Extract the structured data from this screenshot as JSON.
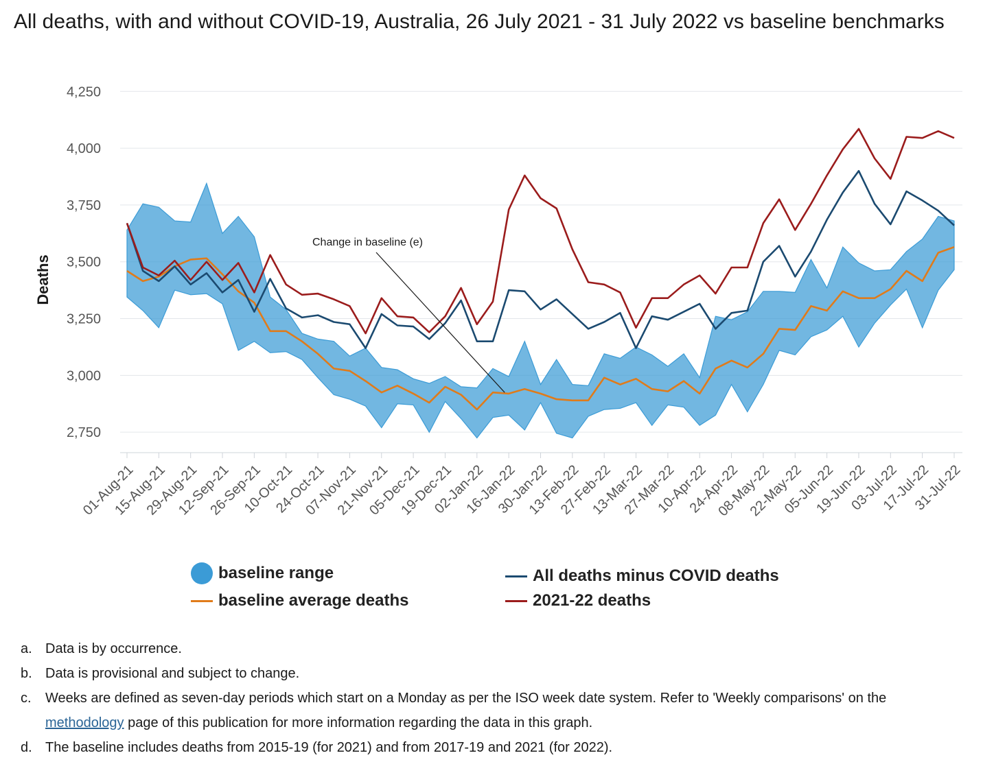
{
  "chart_data": {
    "type": "line",
    "title": "All deaths, with and without COVID-19, Australia, 26 July 2021 - 31 July 2022 vs baseline benchmarks",
    "ylabel": "Deaths",
    "xlabel": "",
    "ylim": [
      2660,
      4290
    ],
    "yticks": [
      2750,
      3000,
      3250,
      3500,
      3750,
      4000,
      4250
    ],
    "grid": true,
    "legend_position": "bottom",
    "x": [
      "01-Aug-21",
      "08-Aug-21",
      "15-Aug-21",
      "22-Aug-21",
      "29-Aug-21",
      "05-Sep-21",
      "12-Sep-21",
      "19-Sep-21",
      "26-Sep-21",
      "03-Oct-21",
      "10-Oct-21",
      "17-Oct-21",
      "24-Oct-21",
      "31-Oct-21",
      "07-Nov-21",
      "14-Nov-21",
      "21-Nov-21",
      "28-Nov-21",
      "05-Dec-21",
      "12-Dec-21",
      "19-Dec-21",
      "26-Dec-21",
      "02-Jan-22",
      "09-Jan-22",
      "16-Jan-22",
      "23-Jan-22",
      "30-Jan-22",
      "06-Feb-22",
      "13-Feb-22",
      "20-Feb-22",
      "27-Feb-22",
      "06-Mar-22",
      "13-Mar-22",
      "20-Mar-22",
      "27-Mar-22",
      "03-Apr-22",
      "10-Apr-22",
      "17-Apr-22",
      "24-Apr-22",
      "01-May-22",
      "08-May-22",
      "15-May-22",
      "22-May-22",
      "29-May-22",
      "05-Jun-22",
      "12-Jun-22",
      "19-Jun-22",
      "26-Jun-22",
      "03-Jul-22",
      "10-Jul-22",
      "17-Jul-22",
      "24-Jul-22",
      "31-Jul-22"
    ],
    "xtick_labels": [
      "01-Aug-21",
      "15-Aug-21",
      "29-Aug-21",
      "12-Sep-21",
      "26-Sep-21",
      "10-Oct-21",
      "24-Oct-21",
      "07-Nov-21",
      "21-Nov-21",
      "05-Dec-21",
      "19-Dec-21",
      "02-Jan-22",
      "16-Jan-22",
      "30-Jan-22",
      "13-Feb-22",
      "27-Feb-22",
      "13-Mar-22",
      "27-Mar-22",
      "10-Apr-22",
      "24-Apr-22",
      "08-May-22",
      "22-May-22",
      "05-Jun-22",
      "19-Jun-22",
      "03-Jul-22",
      "17-Jul-22",
      "31-Jul-22"
    ],
    "series": [
      {
        "name": "baseline range",
        "kind": "range",
        "color": "#3b9bd6",
        "upper": [
          3640,
          3755,
          3740,
          3680,
          3675,
          3845,
          3625,
          3700,
          3610,
          3345,
          3290,
          3185,
          3160,
          3150,
          3085,
          3120,
          3035,
          3025,
          2985,
          2965,
          2995,
          2950,
          2945,
          3030,
          2995,
          3150,
          2960,
          3070,
          2960,
          2955,
          3095,
          3075,
          3125,
          3090,
          3040,
          3095,
          2990,
          3260,
          3245,
          3280,
          3370,
          3370,
          3365,
          3510,
          3385,
          3565,
          3495,
          3460,
          3465,
          3545,
          3600,
          3700,
          3680
        ],
        "lower": [
          3345,
          3285,
          3210,
          3375,
          3355,
          3360,
          3315,
          3110,
          3150,
          3100,
          3105,
          3070,
          2990,
          2915,
          2895,
          2865,
          2770,
          2875,
          2870,
          2750,
          2885,
          2810,
          2725,
          2815,
          2825,
          2760,
          2880,
          2745,
          2725,
          2820,
          2850,
          2855,
          2880,
          2780,
          2870,
          2860,
          2780,
          2825,
          2960,
          2840,
          2960,
          3110,
          3090,
          3170,
          3200,
          3260,
          3125,
          3230,
          3310,
          3380,
          3210,
          3375,
          3465
        ]
      },
      {
        "name": "baseline average deaths",
        "kind": "line",
        "color": "#e07b1a",
        "values": [
          3460,
          3415,
          3435,
          3480,
          3510,
          3515,
          3445,
          3370,
          3320,
          3195,
          3195,
          3150,
          3095,
          3030,
          3020,
          2975,
          2925,
          2955,
          2920,
          2880,
          2950,
          2915,
          2850,
          2925,
          2920,
          2940,
          2920,
          2895,
          2890,
          2890,
          2990,
          2960,
          2985,
          2940,
          2930,
          2975,
          2920,
          3030,
          3065,
          3035,
          3095,
          3205,
          3200,
          3305,
          3285,
          3370,
          3340,
          3340,
          3380,
          3460,
          3415,
          3540,
          3565
        ]
      },
      {
        "name": "All deaths minus COVID deaths",
        "kind": "line",
        "color": "#1b4a70",
        "values": [
          3670,
          3460,
          3415,
          3480,
          3400,
          3450,
          3365,
          3420,
          3280,
          3425,
          3295,
          3255,
          3265,
          3235,
          3225,
          3120,
          3270,
          3220,
          3215,
          3160,
          3230,
          3330,
          3150,
          3150,
          3375,
          3370,
          3290,
          3335,
          3270,
          3205,
          3235,
          3275,
          3120,
          3260,
          3245,
          3280,
          3315,
          3205,
          3275,
          3285,
          3500,
          3570,
          3435,
          3545,
          3685,
          3805,
          3900,
          3755,
          3665,
          3810,
          3770,
          3725,
          3660
        ]
      },
      {
        "name": "2021-22 deaths",
        "kind": "line",
        "color": "#9b1c1c",
        "values": [
          3670,
          3475,
          3440,
          3505,
          3420,
          3500,
          3420,
          3495,
          3365,
          3530,
          3400,
          3355,
          3360,
          3335,
          3305,
          3185,
          3340,
          3260,
          3255,
          3190,
          3260,
          3385,
          3225,
          3325,
          3730,
          3880,
          3780,
          3735,
          3555,
          3410,
          3400,
          3365,
          3210,
          3340,
          3340,
          3400,
          3440,
          3360,
          3475,
          3475,
          3670,
          3775,
          3640,
          3755,
          3880,
          3995,
          4085,
          3955,
          3865,
          4050,
          4045,
          4075,
          4045
        ]
      }
    ],
    "annotations": [
      {
        "text": "Change in baseline (e)",
        "points_to_x": "16-Jan-22"
      }
    ]
  },
  "legend": [
    {
      "label": "baseline range",
      "color": "#3b9bd6",
      "kind": "area"
    },
    {
      "label": "All deaths minus COVID deaths",
      "color": "#1b4a70",
      "kind": "line"
    },
    {
      "label": "baseline average deaths",
      "color": "#e07b1a",
      "kind": "line"
    },
    {
      "label": "2021-22 deaths",
      "color": "#9b1c1c",
      "kind": "line"
    }
  ],
  "notes": [
    {
      "marker": "a.",
      "text": "Data is by occurrence."
    },
    {
      "marker": "b.",
      "text": "Data is provisional and subject to change."
    },
    {
      "marker": "c.",
      "text_before": "Weeks are defined as seven-day periods which start on a Monday as per the ISO week date system. Refer to 'Weekly comparisons' on the ",
      "link": "methodology",
      "text_after": " page of this publication for more information regarding the data in this graph."
    },
    {
      "marker": "d.",
      "text": "The baseline includes deaths from 2015-19 (for 2021) and from 2017-19 and 2021 (for 2022)."
    }
  ]
}
